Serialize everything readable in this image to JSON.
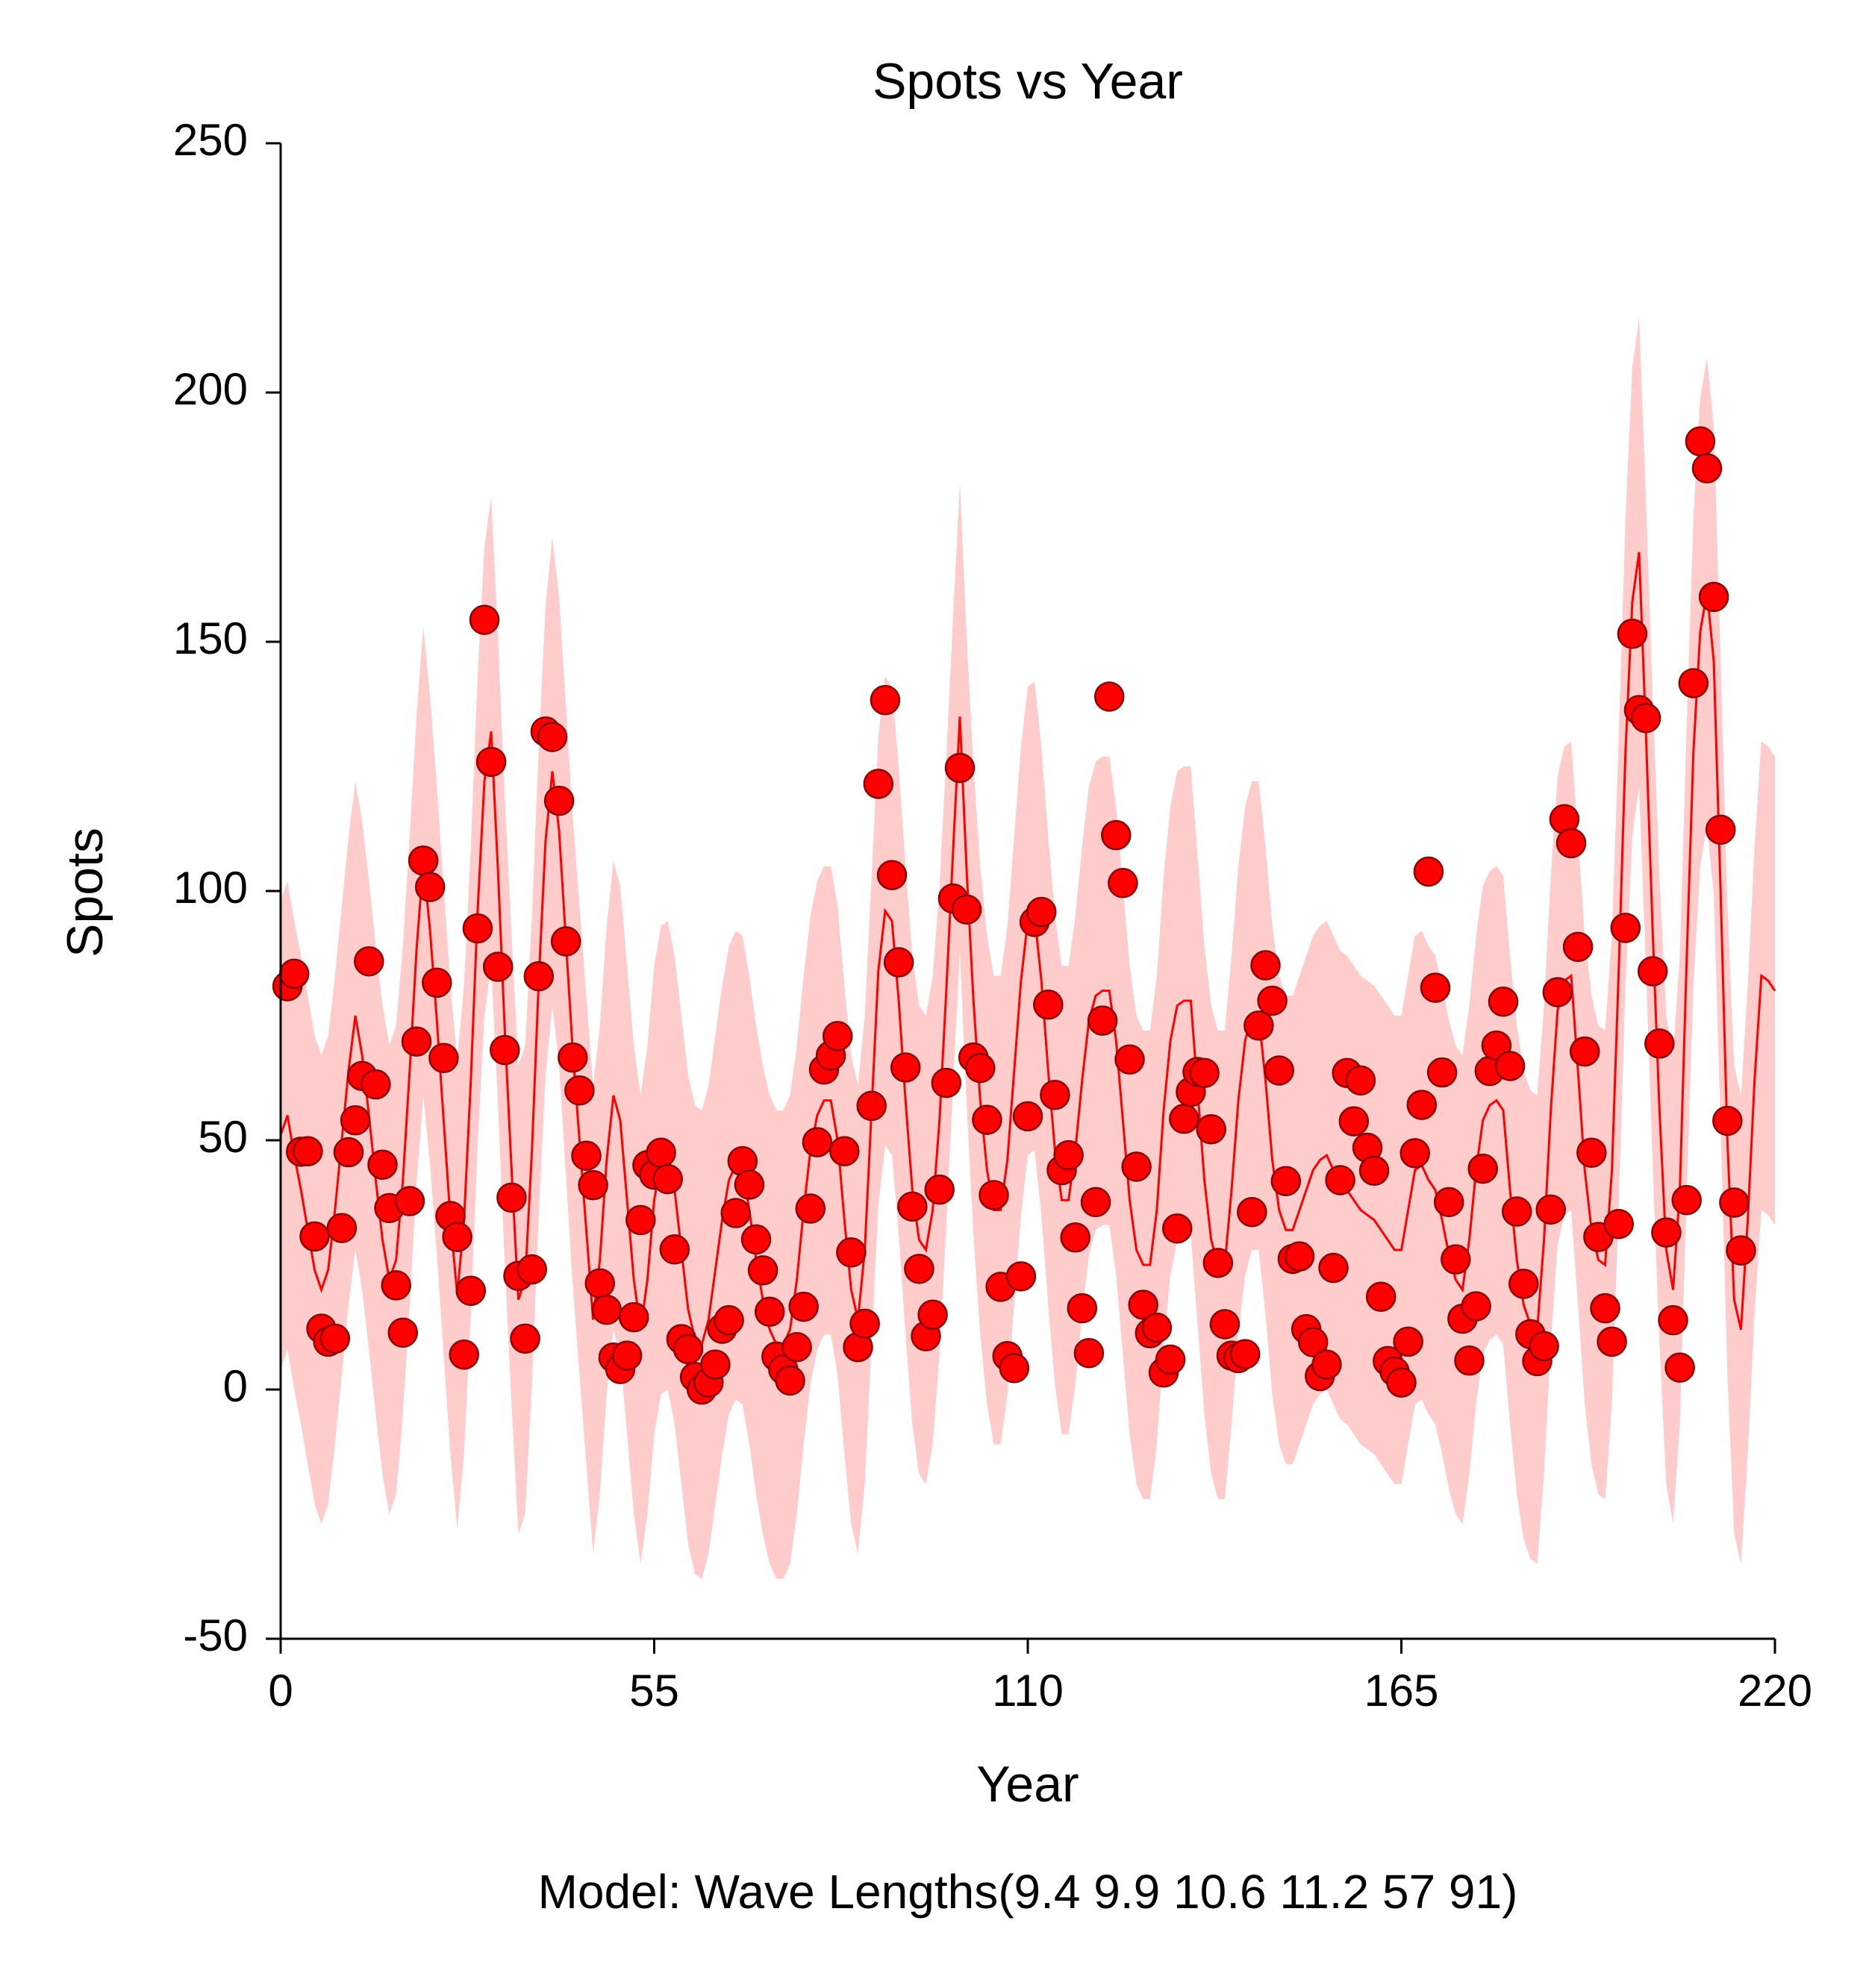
{
  "chart_data": {
    "type": "scatter",
    "title": "Spots vs Year",
    "x_label": "Year",
    "y_label": "Spots",
    "caption": "Model: Wave Lengths(9.4 9.9 10.6 11.2 57 91)",
    "xlim": [
      0,
      220
    ],
    "ylim": [
      -50,
      250
    ],
    "xticks": [
      0,
      55,
      110,
      165,
      220
    ],
    "yticks": [
      -50,
      0,
      50,
      100,
      150,
      200,
      250
    ],
    "fit_line": {
      "color": "#ff0000",
      "band_color": "#ffcccc",
      "x": [
        0,
        1,
        2,
        3,
        4,
        5,
        6,
        7,
        8,
        9,
        10,
        11,
        12,
        13,
        14,
        15,
        16,
        17,
        18,
        19,
        20,
        21,
        22,
        23,
        24,
        25,
        26,
        27,
        28,
        29,
        30,
        31,
        32,
        33,
        34,
        35,
        36,
        37,
        38,
        39,
        40,
        41,
        42,
        43,
        44,
        45,
        46,
        47,
        48,
        49,
        50,
        51,
        52,
        53,
        54,
        55,
        56,
        57,
        58,
        59,
        60,
        61,
        62,
        63,
        64,
        65,
        66,
        67,
        68,
        69,
        70,
        71,
        72,
        73,
        74,
        75,
        76,
        77,
        78,
        79,
        80,
        81,
        82,
        83,
        84,
        85,
        86,
        87,
        88,
        89,
        90,
        91,
        92,
        93,
        94,
        95,
        96,
        97,
        98,
        99,
        100,
        101,
        102,
        103,
        104,
        105,
        106,
        107,
        108,
        109,
        110,
        111,
        112,
        113,
        114,
        115,
        116,
        117,
        118,
        119,
        120,
        121,
        122,
        123,
        124,
        125,
        126,
        127,
        128,
        129,
        130,
        131,
        132,
        133,
        134,
        135,
        136,
        137,
        138,
        139,
        140,
        141,
        142,
        143,
        144,
        145,
        146,
        147,
        148,
        149,
        150,
        151,
        152,
        153,
        154,
        155,
        156,
        157,
        158,
        159,
        160,
        161,
        162,
        163,
        164,
        165,
        166,
        167,
        168,
        169,
        170,
        171,
        172,
        173,
        174,
        175,
        176,
        177,
        178,
        179,
        180,
        181,
        182,
        183,
        184,
        185,
        186,
        187,
        188,
        189,
        190,
        191,
        192,
        193,
        194,
        195,
        196,
        197,
        198,
        199,
        200,
        201,
        202,
        203,
        204,
        205,
        206,
        207,
        208,
        209,
        210,
        211,
        212,
        213,
        214,
        215,
        216,
        217,
        218,
        219,
        220
      ],
      "values": [
        51,
        55,
        47,
        40,
        32,
        24,
        20,
        24,
        36,
        50,
        64,
        75,
        67,
        55,
        42,
        30,
        22,
        26,
        42,
        64,
        88,
        106,
        92,
        74,
        54,
        34,
        19,
        34,
        62,
        96,
        122,
        132,
        104,
        72,
        44,
        18,
        22,
        48,
        82,
        110,
        124,
        112,
        90,
        68,
        50,
        32,
        14,
        26,
        46,
        59,
        54,
        38,
        22,
        12,
        22,
        38,
        46,
        47,
        40,
        28,
        16,
        10,
        9,
        14,
        24,
        34,
        42,
        45,
        44,
        36,
        26,
        18,
        12,
        9,
        9,
        12,
        22,
        36,
        48,
        55,
        58,
        58,
        50,
        34,
        20,
        14,
        28,
        56,
        84,
        96,
        94,
        78,
        58,
        40,
        30,
        28,
        36,
        54,
        80,
        108,
        135,
        104,
        78,
        58,
        44,
        36,
        36,
        46,
        64,
        82,
        94,
        95,
        82,
        64,
        48,
        38,
        38,
        48,
        62,
        74,
        79,
        80,
        80,
        70,
        54,
        38,
        28,
        25,
        25,
        36,
        56,
        70,
        77,
        78,
        78,
        60,
        42,
        30,
        25,
        25,
        40,
        58,
        70,
        75,
        75,
        62,
        46,
        36,
        32,
        32,
        36,
        40,
        44,
        46,
        47,
        44,
        41,
        40,
        38,
        36,
        35,
        34,
        32,
        30,
        28,
        28,
        36,
        44,
        45,
        42,
        40,
        34,
        27,
        22,
        20,
        30,
        44,
        54,
        57,
        58,
        56,
        40,
        26,
        17,
        13,
        12,
        30,
        56,
        76,
        82,
        83,
        64,
        44,
        32,
        26,
        25,
        44,
        84,
        128,
        158,
        168,
        132,
        92,
        56,
        28,
        20,
        40,
        86,
        128,
        152,
        160,
        146,
        100,
        50,
        18,
        12,
        34,
        62,
        83,
        82,
        80
      ],
      "upper": [
        98,
        102,
        94,
        87,
        79,
        71,
        67,
        71,
        83,
        97,
        111,
        122,
        114,
        102,
        89,
        77,
        69,
        73,
        89,
        111,
        135,
        153,
        139,
        121,
        101,
        81,
        66,
        81,
        109,
        143,
        169,
        179,
        151,
        119,
        91,
        65,
        69,
        95,
        129,
        157,
        171,
        159,
        137,
        115,
        97,
        79,
        61,
        73,
        93,
        106,
        101,
        85,
        69,
        59,
        69,
        85,
        93,
        94,
        87,
        75,
        63,
        57,
        56,
        61,
        71,
        81,
        89,
        92,
        91,
        83,
        73,
        65,
        59,
        56,
        56,
        59,
        69,
        83,
        95,
        102,
        105,
        105,
        97,
        81,
        67,
        61,
        75,
        103,
        131,
        143,
        141,
        125,
        105,
        87,
        77,
        75,
        83,
        101,
        127,
        155,
        182,
        151,
        125,
        105,
        91,
        83,
        83,
        93,
        111,
        129,
        141,
        142,
        129,
        111,
        95,
        85,
        85,
        95,
        109,
        121,
        126,
        127,
        127,
        117,
        101,
        85,
        75,
        72,
        72,
        83,
        103,
        117,
        124,
        125,
        125,
        107,
        89,
        77,
        72,
        72,
        87,
        105,
        117,
        122,
        122,
        109,
        93,
        83,
        79,
        79,
        83,
        87,
        91,
        93,
        94,
        91,
        88,
        87,
        85,
        83,
        82,
        81,
        79,
        77,
        75,
        75,
        83,
        91,
        92,
        89,
        87,
        81,
        74,
        69,
        67,
        77,
        91,
        101,
        104,
        105,
        103,
        87,
        73,
        64,
        60,
        59,
        77,
        103,
        123,
        129,
        130,
        111,
        91,
        79,
        73,
        72,
        91,
        131,
        175,
        205,
        215,
        179,
        139,
        103,
        75,
        67,
        87,
        133,
        175,
        199,
        207,
        193,
        147,
        97,
        65,
        59,
        81,
        109,
        130,
        129,
        127
      ],
      "lower": [
        4,
        8,
        0,
        -7,
        -15,
        -23,
        -27,
        -23,
        -11,
        3,
        17,
        28,
        20,
        8,
        -5,
        -17,
        -25,
        -21,
        -5,
        17,
        41,
        59,
        45,
        27,
        7,
        -13,
        -28,
        -13,
        15,
        49,
        75,
        85,
        57,
        25,
        -3,
        -29,
        -25,
        1,
        35,
        63,
        77,
        65,
        43,
        21,
        3,
        -15,
        -33,
        -21,
        -1,
        12,
        7,
        -9,
        -25,
        -35,
        -25,
        -9,
        -1,
        0,
        -7,
        -19,
        -31,
        -37,
        -38,
        -33,
        -23,
        -13,
        -5,
        -2,
        -3,
        -11,
        -21,
        -29,
        -35,
        -38,
        -38,
        -35,
        -25,
        -11,
        1,
        8,
        11,
        11,
        3,
        -13,
        -27,
        -33,
        -19,
        9,
        37,
        49,
        47,
        31,
        11,
        -7,
        -17,
        -19,
        -11,
        7,
        33,
        61,
        88,
        57,
        31,
        11,
        -3,
        -11,
        -11,
        -1,
        17,
        35,
        47,
        48,
        35,
        17,
        1,
        -9,
        -9,
        1,
        15,
        27,
        32,
        33,
        33,
        23,
        7,
        -9,
        -19,
        -22,
        -22,
        -11,
        9,
        23,
        30,
        31,
        31,
        13,
        -5,
        -17,
        -22,
        -22,
        -7,
        11,
        23,
        28,
        28,
        15,
        -1,
        -11,
        -15,
        -15,
        -11,
        -7,
        -3,
        -1,
        0,
        -3,
        -6,
        -7,
        -9,
        -11,
        -12,
        -13,
        -15,
        -17,
        -19,
        -19,
        -11,
        -3,
        -2,
        -5,
        -7,
        -13,
        -20,
        -25,
        -27,
        -17,
        -3,
        7,
        10,
        11,
        9,
        -7,
        -21,
        -30,
        -34,
        -35,
        -17,
        9,
        29,
        35,
        36,
        17,
        -3,
        -15,
        -21,
        -22,
        -3,
        37,
        81,
        111,
        121,
        85,
        45,
        9,
        -19,
        -27,
        -7,
        39,
        81,
        105,
        113,
        99,
        53,
        3,
        -29,
        -35,
        -13,
        15,
        36,
        35,
        33
      ]
    },
    "points": {
      "color": "#ff0000",
      "edge_color": "#8b0000",
      "x": [
        1,
        2,
        3,
        4,
        5,
        6,
        7,
        8,
        9,
        10,
        11,
        12,
        13,
        14,
        15,
        16,
        17,
        18,
        19,
        20,
        21,
        22,
        23,
        24,
        25,
        26,
        27,
        28,
        29,
        30,
        31,
        32,
        33,
        34,
        35,
        36,
        37,
        38,
        39,
        40,
        41,
        42,
        43,
        44,
        45,
        46,
        47,
        48,
        49,
        50,
        51,
        52,
        53,
        54,
        55,
        56,
        57,
        58,
        59,
        60,
        61,
        62,
        63,
        64,
        65,
        66,
        67,
        68,
        69,
        70,
        71,
        72,
        73,
        74,
        75,
        76,
        77,
        78,
        79,
        80,
        81,
        82,
        83,
        84,
        85,
        86,
        87,
        88,
        89,
        90,
        91,
        92,
        93,
        94,
        95,
        96,
        97,
        98,
        99,
        100,
        101,
        102,
        103,
        104,
        105,
        106,
        107,
        108,
        109,
        110,
        111,
        112,
        113,
        114,
        115,
        116,
        117,
        118,
        119,
        120,
        121,
        122,
        123,
        124,
        125,
        126,
        127,
        128,
        129,
        130,
        131,
        132,
        133,
        134,
        135,
        136,
        137,
        138,
        139,
        140,
        141,
        142,
        143,
        144,
        145,
        146,
        147,
        148,
        149,
        150,
        151,
        152,
        153,
        154,
        155,
        156,
        157,
        158,
        159,
        160,
        161,
        162,
        163,
        164,
        165,
        166,
        167,
        168,
        169,
        170,
        171,
        172,
        173,
        174,
        175,
        176,
        177,
        178,
        179,
        180,
        181,
        182,
        183,
        184,
        185,
        186,
        187,
        188,
        189,
        190,
        191,
        192,
        193,
        194,
        195,
        196,
        197,
        198,
        199,
        200,
        201,
        202,
        203,
        204,
        205,
        206,
        207,
        208,
        209,
        210,
        211,
        212,
        213,
        214,
        215
      ],
      "values": [
        80.9,
        83.4,
        47.7,
        47.8,
        30.7,
        12.2,
        9.6,
        10.2,
        32.4,
        47.6,
        54.0,
        62.9,
        85.9,
        61.2,
        45.1,
        36.4,
        20.9,
        11.4,
        37.8,
        69.8,
        106.1,
        100.8,
        81.6,
        66.5,
        34.8,
        30.6,
        7.0,
        19.8,
        92.5,
        154.4,
        125.9,
        84.8,
        68.1,
        38.5,
        22.8,
        10.2,
        24.1,
        82.9,
        132.0,
        130.9,
        118.1,
        89.9,
        66.6,
        60.0,
        46.9,
        41.0,
        21.3,
        16.0,
        6.4,
        4.1,
        6.8,
        14.5,
        34.0,
        45.0,
        43.1,
        47.5,
        42.2,
        28.1,
        10.1,
        8.1,
        2.5,
        0.0,
        1.4,
        5.0,
        12.2,
        13.9,
        35.4,
        45.8,
        41.1,
        30.1,
        23.9,
        15.6,
        6.6,
        4.0,
        1.8,
        8.5,
        16.6,
        36.3,
        49.6,
        64.2,
        67.0,
        70.9,
        47.8,
        27.5,
        8.5,
        13.2,
        56.9,
        121.5,
        138.3,
        103.2,
        85.7,
        64.6,
        36.7,
        24.2,
        10.7,
        15.0,
        40.1,
        61.5,
        98.5,
        124.7,
        96.3,
        66.6,
        64.5,
        54.1,
        39.0,
        20.6,
        6.7,
        4.3,
        22.7,
        54.8,
        93.8,
        95.8,
        77.2,
        59.1,
        44.0,
        47.0,
        30.5,
        16.3,
        7.3,
        37.6,
        74.0,
        139.0,
        111.2,
        101.6,
        66.2,
        44.7,
        17.0,
        11.3,
        12.4,
        3.4,
        6.0,
        32.3,
        54.3,
        59.7,
        63.7,
        63.5,
        52.2,
        25.4,
        13.1,
        6.8,
        6.3,
        7.1,
        35.6,
        73.0,
        85.1,
        78.0,
        64.0,
        41.8,
        26.2,
        26.7,
        12.1,
        9.5,
        2.7,
        5.0,
        24.4,
        42.0,
        63.5,
        53.8,
        62.0,
        48.5,
        43.9,
        18.6,
        5.7,
        3.6,
        1.4,
        9.6,
        47.4,
        57.1,
        103.9,
        80.6,
        63.6,
        37.6,
        26.1,
        14.2,
        5.8,
        16.7,
        44.3,
        63.9,
        69.0,
        77.8,
        64.9,
        35.7,
        21.2,
        11.1,
        5.7,
        8.7,
        36.1,
        79.7,
        114.4,
        109.6,
        88.8,
        67.8,
        47.5,
        30.6,
        16.3,
        9.6,
        33.2,
        92.6,
        151.6,
        136.3,
        134.7,
        83.9,
        69.4,
        31.5,
        13.9,
        4.4,
        38.0,
        141.7,
        190.2,
        184.8,
        159.0,
        112.3,
        53.9,
        37.5,
        27.9
      ]
    }
  }
}
